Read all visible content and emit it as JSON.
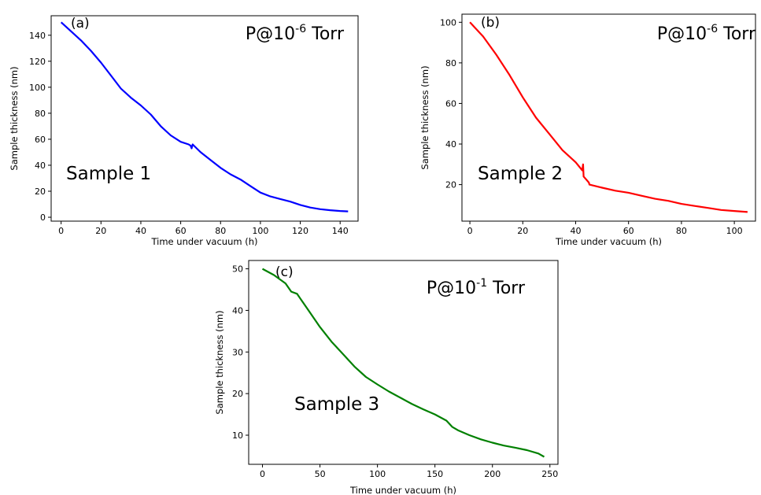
{
  "chart_data": [
    {
      "type": "line",
      "panel_label": "(a)",
      "pressure": {
        "base": "P@10",
        "exponent": "-6",
        "unit": " Torr"
      },
      "annotation": "Sample 1",
      "xlabel": "Time under vacuum (h)",
      "ylabel": "Sample thickness (nm)",
      "xlim": [
        -5,
        149
      ],
      "ylim": [
        -3,
        155
      ],
      "xticks": [
        0,
        20,
        40,
        60,
        80,
        100,
        120,
        140
      ],
      "yticks": [
        0,
        20,
        40,
        60,
        80,
        100,
        120,
        140
      ],
      "grid": false,
      "color": "#0000ff",
      "series": [
        {
          "x": [
            0,
            5,
            10,
            15,
            20,
            25,
            30,
            35,
            40,
            45,
            50,
            55,
            60,
            64,
            65,
            65.5,
            66,
            70,
            75,
            80,
            85,
            90,
            95,
            100,
            105,
            110,
            115,
            120,
            125,
            130,
            135,
            140,
            144
          ],
          "y": [
            150,
            143,
            136,
            128,
            119,
            109,
            99,
            92,
            86,
            79,
            70,
            63,
            58,
            56,
            55,
            53,
            56,
            50,
            44,
            38,
            33,
            29,
            24,
            19,
            16,
            14,
            12,
            9.5,
            7.5,
            6.2,
            5.4,
            4.8,
            4.5
          ]
        }
      ]
    },
    {
      "type": "line",
      "panel_label": "(b)",
      "pressure": {
        "base": "P@10",
        "exponent": "-6",
        "unit": " Torr"
      },
      "annotation": "Sample 2",
      "xlabel": "Time under vacuum (h)",
      "ylabel": "Sample thickness (nm)",
      "xlim": [
        -3,
        108
      ],
      "ylim": [
        2,
        104
      ],
      "xticks": [
        0,
        20,
        40,
        60,
        80,
        100
      ],
      "yticks": [
        20,
        40,
        60,
        80,
        100
      ],
      "grid": false,
      "color": "#ff0000",
      "series": [
        {
          "x": [
            0,
            5,
            10,
            15,
            20,
            25,
            30,
            35,
            40,
            42.5,
            42.8,
            43,
            45,
            45.2,
            50,
            55,
            60,
            65,
            70,
            75,
            80,
            85,
            90,
            95,
            100,
            105
          ],
          "y": [
            100,
            93,
            84,
            74,
            63,
            53,
            45,
            37,
            31,
            27,
            30,
            24,
            21,
            20,
            18.5,
            17,
            16,
            14.5,
            13,
            12,
            10.5,
            9.5,
            8.5,
            7.5,
            7,
            6.5
          ]
        }
      ]
    },
    {
      "type": "line",
      "panel_label": "(c)",
      "pressure": {
        "base": "P@10",
        "exponent": "-1",
        "unit": " Torr"
      },
      "annotation": "Sample 3",
      "xlabel": "Time under vacuum (h)",
      "ylabel": "Sample thickness (nm)",
      "xlim": [
        -12,
        257
      ],
      "ylim": [
        3,
        52
      ],
      "xticks": [
        0,
        50,
        100,
        150,
        200,
        250
      ],
      "yticks": [
        10,
        20,
        30,
        40,
        50
      ],
      "grid": false,
      "color": "#008000",
      "series": [
        {
          "x": [
            0,
            10,
            20,
            25,
            30,
            40,
            50,
            60,
            70,
            80,
            90,
            100,
            110,
            120,
            130,
            140,
            150,
            160,
            165,
            170,
            180,
            190,
            200,
            210,
            220,
            230,
            240,
            245
          ],
          "y": [
            50,
            48.5,
            46.5,
            44.5,
            44,
            40,
            36,
            32.5,
            29.5,
            26.5,
            24,
            22.2,
            20.5,
            19,
            17.5,
            16.2,
            15,
            13.5,
            12,
            11.2,
            10,
            9,
            8.2,
            7.5,
            7,
            6.4,
            5.6,
            4.8
          ]
        }
      ]
    }
  ]
}
